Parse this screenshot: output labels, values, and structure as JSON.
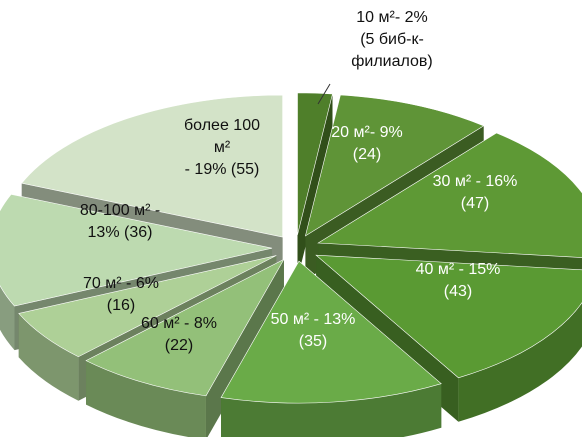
{
  "chart_data": {
    "type": "pie",
    "style": "3d-exploded",
    "slices": [
      {
        "area": "10 м²",
        "percent": 2,
        "count": 5,
        "label": [
          "10 м²- 2%",
          "(5 биб-к-",
          "филиалов)"
        ],
        "color": "#4f7f2a"
      },
      {
        "area": "20 м²",
        "percent": 9,
        "count": 24,
        "label": [
          "20 м²- 9%",
          "(24)"
        ],
        "color": "#5f9437"
      },
      {
        "area": "30 м²",
        "percent": 16,
        "count": 47,
        "label": [
          "30 м² - 16%",
          "(47)"
        ],
        "color": "#5e9935"
      },
      {
        "area": "40 м²",
        "percent": 15,
        "count": 43,
        "label": [
          "40 м² - 15%",
          "(43)"
        ],
        "color": "#5a9a33"
      },
      {
        "area": "50 м²",
        "percent": 13,
        "count": 35,
        "label": [
          "50 м² - 13%",
          "(35)"
        ],
        "color": "#6aab48"
      },
      {
        "area": "60 м²",
        "percent": 8,
        "count": 22,
        "label": [
          "60 м² - 8%",
          "(22)"
        ],
        "color": "#93c079"
      },
      {
        "area": "70 м²",
        "percent": 6,
        "count": 16,
        "label": [
          "70 м² - 6%",
          "(16)"
        ],
        "color": "#aed097"
      },
      {
        "area": "80-100 м²",
        "percent": 13,
        "count": 36,
        "label": [
          "80-100 м² -",
          "13% (36)"
        ],
        "color": "#bddab0"
      },
      {
        "area": "более 100 м²",
        "percent": 19,
        "count": 55,
        "label": [
          "более 100",
          "м²",
          "- 19% (55)"
        ],
        "color": "#d3e3c8"
      }
    ]
  }
}
